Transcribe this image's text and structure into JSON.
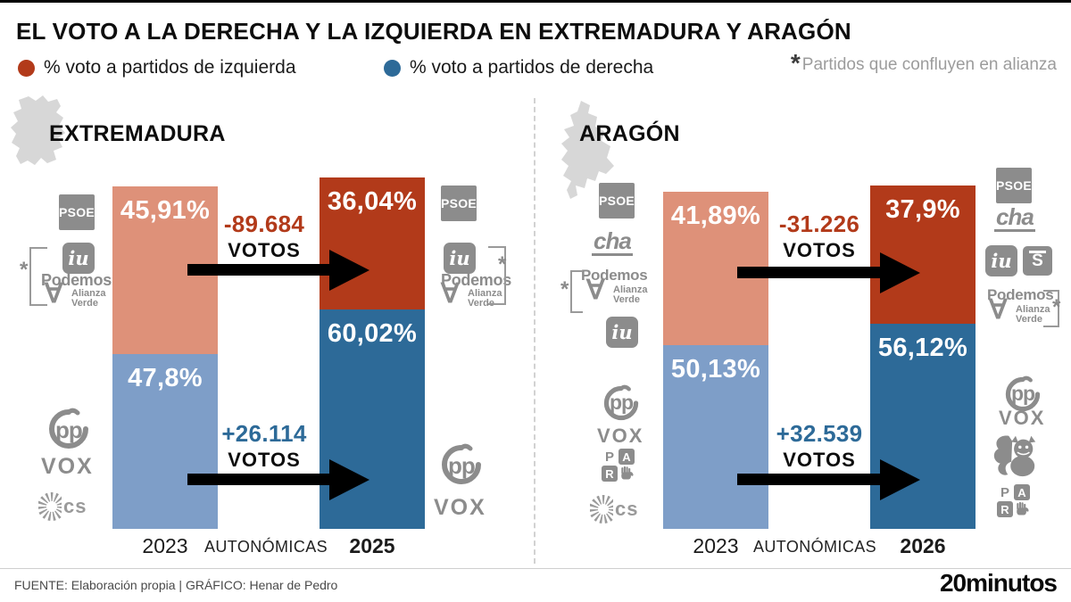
{
  "header": {
    "title": "EL VOTO A LA DERECHA Y LA IZQUIERDA EN EXTREMADURA Y ARAGÓN",
    "legend": [
      {
        "label": "% voto a partidos de izquierda",
        "color": "#b23a1a"
      },
      {
        "label": "% voto a partidos de derecha",
        "color": "#2d6a98"
      }
    ],
    "note_mark": "*",
    "note": "Partidos que confluyen en alianza"
  },
  "chart_data": [
    {
      "type": "bar",
      "region": "EXTREMADURA",
      "categories": [
        "2023",
        "2025"
      ],
      "axis_mid_label": "AUTONÓMICAS",
      "series": [
        {
          "name": "% voto a partidos de izquierda",
          "values": [
            45.91,
            36.04
          ],
          "labels": [
            "45,91%",
            "36,04%"
          ],
          "colors": [
            "#de9179",
            "#b23a1a"
          ]
        },
        {
          "name": "% voto a partidos de derecha",
          "values": [
            47.8,
            60.02
          ],
          "labels": [
            "47,8%",
            "60,02%"
          ],
          "colors": [
            "#7e9ec8",
            "#2d6a98"
          ]
        }
      ],
      "deltas": [
        {
          "value": "-89.684",
          "unit": "VOTOS",
          "color": "#b23a1a"
        },
        {
          "value": "+26.114",
          "unit": "VOTOS",
          "color": "#2d6a98"
        }
      ],
      "left_bloc_parties_2023": [
        "PSOE",
        "IU",
        "Podemos",
        "Alianza Verde"
      ],
      "left_bloc_parties_2025": [
        "PSOE",
        "IU",
        "Podemos",
        "Alianza Verde"
      ],
      "right_bloc_parties_2023": [
        "PP",
        "VOX",
        "Cs"
      ],
      "right_bloc_parties_2025": [
        "PP",
        "VOX"
      ]
    },
    {
      "type": "bar",
      "region": "ARAGÓN",
      "categories": [
        "2023",
        "2026"
      ],
      "axis_mid_label": "AUTONÓMICAS",
      "series": [
        {
          "name": "% voto a partidos de izquierda",
          "values": [
            41.89,
            37.9
          ],
          "labels": [
            "41,89%",
            "37,9%"
          ],
          "colors": [
            "#de9179",
            "#b23a1a"
          ]
        },
        {
          "name": "% voto a partidos de derecha",
          "values": [
            50.13,
            56.12
          ],
          "labels": [
            "50,13%",
            "56,12%"
          ],
          "colors": [
            "#7e9ec8",
            "#2d6a98"
          ]
        }
      ],
      "deltas": [
        {
          "value": "-31.226",
          "unit": "VOTOS",
          "color": "#b23a1a"
        },
        {
          "value": "+32.539",
          "unit": "VOTOS",
          "color": "#2d6a98"
        }
      ],
      "left_bloc_parties_2023": [
        "PSOE",
        "CHA",
        "Podemos",
        "Alianza Verde",
        "IU"
      ],
      "left_bloc_parties_2026": [
        "PSOE",
        "CHA",
        "IU",
        "Sumar",
        "Podemos",
        "Alianza Verde"
      ],
      "right_bloc_parties_2023": [
        "PP",
        "VOX",
        "PAR",
        "Cs"
      ],
      "right_bloc_parties_2026": [
        "PP",
        "VOX",
        "Existe",
        "PAR"
      ]
    }
  ],
  "logos": {
    "psoe": "PSOE",
    "iu": "iu",
    "podemos": "Podemos",
    "alianza": "Alianza",
    "verde": "Verde",
    "av_glyph": "∀",
    "cha": "cha",
    "pp": "pp",
    "vox": "VOX",
    "cs": "cs",
    "s": "S",
    "par_p": "P",
    "par_a": "A",
    "par_r": "R",
    "asterisk": "*"
  },
  "footer": {
    "source": "FUENTE: Elaboración propia  |  GRÁFICO: Henar de Pedro",
    "brand": "20minutos"
  }
}
